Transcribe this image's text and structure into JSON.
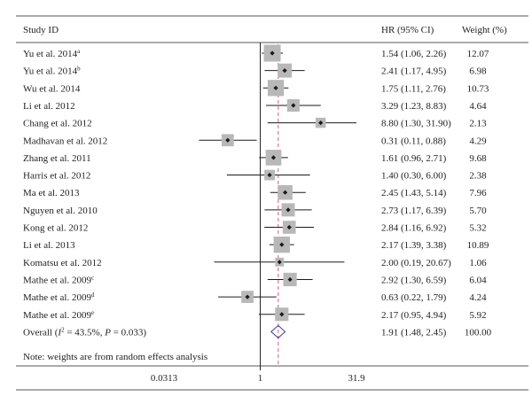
{
  "chart_data": {
    "type": "forest",
    "columns": {
      "study": "Study ID",
      "hr": "HR (95% CI)",
      "weight": "Weight (%)"
    },
    "studies": [
      {
        "name": "Yu et al. 2014",
        "sup": "a",
        "hr": 1.54,
        "lo": 1.06,
        "hi": 2.26,
        "ci_text": "1.54 (1.06, 2.26)",
        "weight": 12.07,
        "weight_text": "12.07"
      },
      {
        "name": "Yu et al. 2014",
        "sup": "b",
        "hr": 2.41,
        "lo": 1.17,
        "hi": 4.95,
        "ci_text": "2.41 (1.17, 4.95)",
        "weight": 6.98,
        "weight_text": "6.98"
      },
      {
        "name": "Wu et al. 2014",
        "sup": "",
        "hr": 1.75,
        "lo": 1.11,
        "hi": 2.76,
        "ci_text": "1.75 (1.11, 2.76)",
        "weight": 10.73,
        "weight_text": "10.73"
      },
      {
        "name": "Li et al. 2012",
        "sup": "",
        "hr": 3.29,
        "lo": 1.23,
        "hi": 8.83,
        "ci_text": "3.29 (1.23, 8.83)",
        "weight": 4.64,
        "weight_text": "4.64"
      },
      {
        "name": "Chang et al. 2012",
        "sup": "",
        "hr": 8.8,
        "lo": 1.3,
        "hi": 31.9,
        "ci_text": "8.80 (1.30, 31.90)",
        "weight": 2.13,
        "weight_text": "2.13"
      },
      {
        "name": "Madhavan et al. 2012",
        "sup": "",
        "hr": 0.31,
        "lo": 0.11,
        "hi": 0.88,
        "ci_text": "0.31 (0.11, 0.88)",
        "weight": 4.29,
        "weight_text": "4.29"
      },
      {
        "name": "Zhang et al. 2011",
        "sup": "",
        "hr": 1.61,
        "lo": 0.96,
        "hi": 2.71,
        "ci_text": "1.61 (0.96, 2.71)",
        "weight": 9.68,
        "weight_text": "9.68"
      },
      {
        "name": "Harris et al. 2012",
        "sup": "",
        "hr": 1.4,
        "lo": 0.3,
        "hi": 6.0,
        "ci_text": "1.40 (0.30, 6.00)",
        "weight": 2.38,
        "weight_text": "2.38"
      },
      {
        "name": "Ma et al. 2013",
        "sup": "",
        "hr": 2.45,
        "lo": 1.43,
        "hi": 5.14,
        "ci_text": "2.45 (1.43, 5.14)",
        "weight": 7.96,
        "weight_text": "7.96"
      },
      {
        "name": "Nguyen et al. 2010",
        "sup": "",
        "hr": 2.73,
        "lo": 1.17,
        "hi": 6.39,
        "ci_text": "2.73 (1.17, 6.39)",
        "weight": 5.7,
        "weight_text": "5.70"
      },
      {
        "name": "Kong et al. 2012",
        "sup": "",
        "hr": 2.84,
        "lo": 1.16,
        "hi": 6.92,
        "ci_text": "2.84 (1.16, 6.92)",
        "weight": 5.32,
        "weight_text": "5.32"
      },
      {
        "name": "Li et al. 2013",
        "sup": "",
        "hr": 2.17,
        "lo": 1.39,
        "hi": 3.38,
        "ci_text": "2.17 (1.39, 3.38)",
        "weight": 10.89,
        "weight_text": "10.89"
      },
      {
        "name": "Komatsu et al. 2012",
        "sup": "",
        "hr": 2.0,
        "lo": 0.19,
        "hi": 20.67,
        "ci_text": "2.00 (0.19, 20.67)",
        "weight": 1.06,
        "weight_text": "1.06"
      },
      {
        "name": "Mathe et al. 2009",
        "sup": "c",
        "hr": 2.92,
        "lo": 1.3,
        "hi": 6.59,
        "ci_text": "2.92 (1.30, 6.59)",
        "weight": 6.04,
        "weight_text": "6.04"
      },
      {
        "name": "Mathe et al. 2009",
        "sup": "d",
        "hr": 0.63,
        "lo": 0.22,
        "hi": 1.79,
        "ci_text": "0.63 (0.22, 1.79)",
        "weight": 4.24,
        "weight_text": "4.24"
      },
      {
        "name": "Mathe et al. 2009",
        "sup": "e",
        "hr": 2.17,
        "lo": 0.95,
        "hi": 4.94,
        "ci_text": "2.17 (0.95, 4.94)",
        "weight": 5.92,
        "weight_text": "5.92"
      }
    ],
    "overall": {
      "label_prefix": "Overall (",
      "i2_symbol": "I",
      "i2_sup": "2",
      "label_rest": " = 43.5%, ",
      "p_symbol": "P",
      "p_rest": " = 0.033)",
      "hr": 1.91,
      "lo": 1.48,
      "hi": 2.45,
      "ci_text": "1.91 (1.48, 2.45)",
      "weight_text": "100.00"
    },
    "note": "Note: weights are from random effects analysis",
    "x_axis": {
      "scale": "log",
      "range": [
        0.0313,
        31.9
      ],
      "ticks": [
        {
          "value": 0.0313,
          "label": "0.0313"
        },
        {
          "value": 1,
          "label": "1"
        },
        {
          "value": 31.9,
          "label": "31.9"
        }
      ],
      "null_line": 1,
      "overall_line": 1.91
    },
    "colors": {
      "box": "#b8b8b8",
      "point": "#1a1a1a",
      "ci_line": "#1a1a1a",
      "overall_line": "#e05a7a",
      "diamond": "#3b3b9a",
      "rule": "#555555"
    }
  }
}
